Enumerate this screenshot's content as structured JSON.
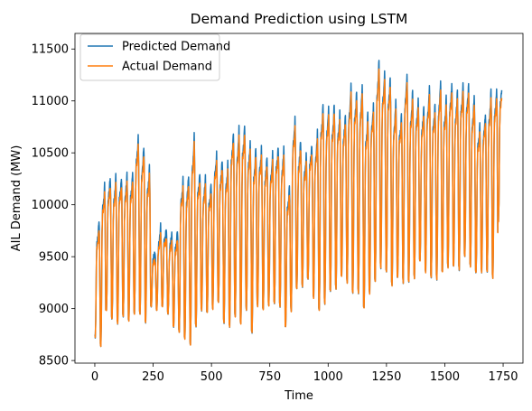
{
  "chart_data": {
    "type": "line",
    "title": "Demand Prediction using LSTM",
    "xlabel": "Time",
    "ylabel": "AIL Demand (MW)",
    "xlim": [
      -85,
      1835
    ],
    "ylim": [
      8475,
      11650
    ],
    "xticks": [
      0,
      250,
      500,
      750,
      1000,
      1250,
      1500,
      1750
    ],
    "yticks": [
      8500,
      9000,
      9500,
      10000,
      10500,
      11000,
      11500
    ],
    "x_tick_labels": [
      "0",
      "250",
      "500",
      "750",
      "1000",
      "1250",
      "1500",
      "1750"
    ],
    "y_tick_labels": [
      "8500",
      "9000",
      "9500",
      "10000",
      "10500",
      "11000",
      "11500"
    ],
    "legend_position": "upper-left",
    "grid": false,
    "n_points": 1745,
    "period": 24,
    "daily_profile": {
      "x": [
        0,
        2,
        4,
        6,
        7,
        9,
        12,
        15,
        18,
        20,
        22,
        24
      ],
      "weight": [
        0.02,
        0.0,
        0.15,
        0.55,
        0.72,
        0.85,
        0.88,
        0.92,
        1.0,
        0.88,
        0.45,
        0.02
      ]
    },
    "day_envelope": {
      "peak": [
        9750,
        10120,
        10180,
        10180,
        10200,
        10200,
        10230,
        10580,
        10470,
        10280,
        9480,
        9690,
        9700,
        9640,
        9660,
        10170,
        10200,
        10570,
        10250,
        10170,
        10120,
        10420,
        10340,
        10320,
        10630,
        10630,
        10700,
        10520,
        10460,
        10470,
        10380,
        10400,
        10500,
        10450,
        10100,
        10760,
        10520,
        10400,
        10500,
        10600,
        10900,
        10860,
        10870,
        10820,
        10780,
        11060,
        11030,
        11050,
        10800,
        10900,
        11300,
        11200,
        11150,
        10900,
        10800,
        11180,
        11000,
        10950,
        10850,
        11050,
        10900,
        11100,
        10950,
        11100,
        11000,
        11100,
        11080,
        10950,
        10700,
        10800,
        11000,
        11050,
        11100
      ],
      "trough": [
        8720,
        8640,
        8980,
        8900,
        8860,
        8920,
        8880,
        8950,
        8940,
        8870,
        9020,
        8980,
        9020,
        8950,
        8820,
        8780,
        8700,
        8650,
        8830,
        8980,
        8960,
        9000,
        9050,
        8870,
        8820,
        8920,
        8850,
        8990,
        8760,
        9030,
        8980,
        9030,
        9050,
        9020,
        8820,
        8980,
        9180,
        9220,
        9280,
        9100,
        8980,
        9050,
        9160,
        9200,
        9300,
        9250,
        9150,
        9150,
        9000,
        9150,
        9250,
        9400,
        9350,
        9220,
        9300,
        9250,
        9250,
        9300,
        9450,
        9350,
        9300,
        9280,
        9350,
        9400,
        9400,
        9380,
        9500,
        9400,
        9350,
        9350,
        9350,
        9300,
        9830
      ]
    },
    "predicted_overshoot_mw": 55,
    "series": [
      {
        "name": "Predicted Demand",
        "color": "#1f77b4"
      },
      {
        "name": "Actual Demand",
        "color": "#ff7f0e"
      }
    ]
  }
}
